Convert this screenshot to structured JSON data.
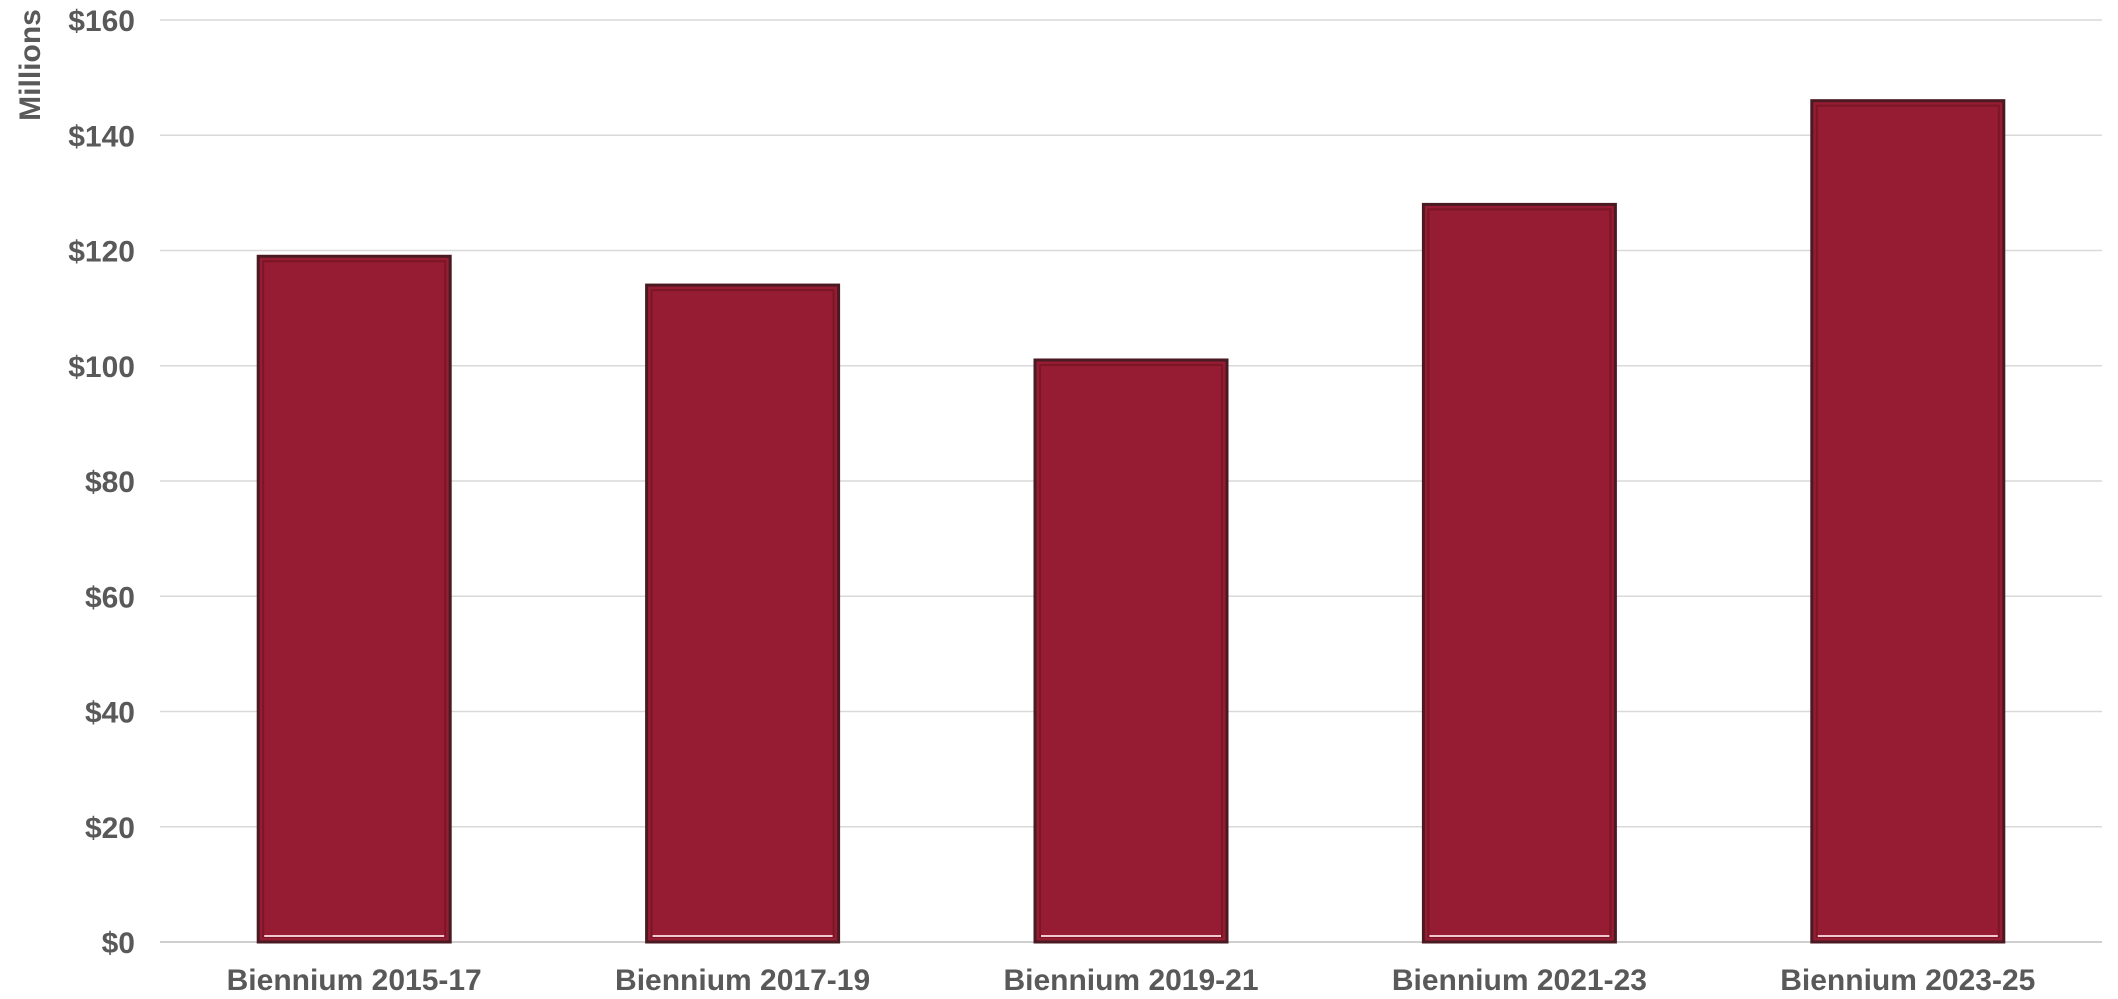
{
  "chart_data": {
    "type": "bar",
    "ylabel": "Millions",
    "categories": [
      "Biennium 2015-17",
      "Biennium 2017-19",
      "Biennium 2019-21",
      "Biennium 2021-23",
      "Biennium 2023-25"
    ],
    "values": [
      119,
      114,
      101,
      128,
      146
    ],
    "ylim": [
      0,
      160
    ],
    "yticks": [
      0,
      20,
      40,
      60,
      80,
      100,
      120,
      140,
      160
    ],
    "ytick_labels": [
      "$0",
      "$20",
      "$40",
      "$60",
      "$80",
      "$100",
      "$120",
      "$140",
      "$160"
    ],
    "grid": true,
    "legend": "none",
    "colors": {
      "bar": "#951C32",
      "grid": "#d9d9d9",
      "text": "#595959"
    }
  }
}
